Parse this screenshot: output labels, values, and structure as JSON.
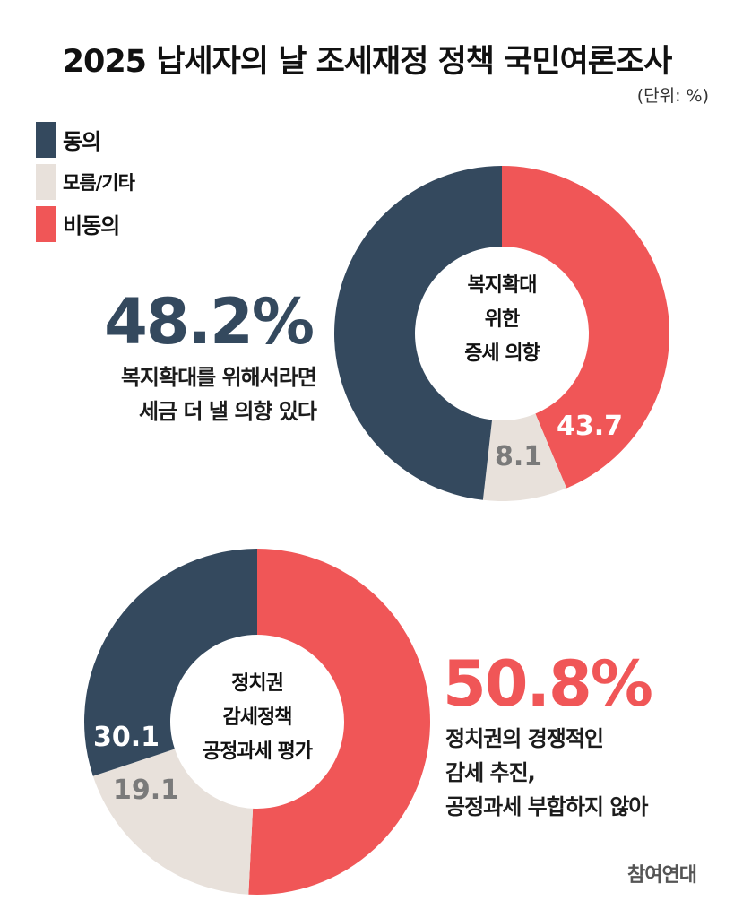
{
  "title": "2025 납세자의 날 조세재정 정책 국민여론조사",
  "unit": "(단위: %)",
  "colors": {
    "agree": "#34495e",
    "unknown": "#e8e1db",
    "disagree": "#f05657",
    "unknown_text": "#7a7a7a",
    "white": "#ffffff"
  },
  "legend": [
    {
      "label": "동의",
      "color": "#34495e"
    },
    {
      "label": "모름/기타",
      "color": "#e8e1db"
    },
    {
      "label": "비동의",
      "color": "#f05657"
    }
  ],
  "charts": [
    {
      "center_label": [
        "복지확대",
        "위한",
        "증세 의향"
      ],
      "headline_pct": "48.2%",
      "headline_desc": [
        "복지확대를 위해서라면",
        "세금 더 낼 의향 있다"
      ],
      "slice_labels": {
        "disagree": "43.7",
        "unknown": "8.1"
      }
    },
    {
      "center_label": [
        "정치권",
        "감세정책",
        "공정과세 평가"
      ],
      "headline_pct": "50.8%",
      "headline_desc": [
        "정치권의 경쟁적인",
        "감세 추진,",
        "공정과세 부합하지 않아"
      ],
      "slice_labels": {
        "agree": "30.1",
        "unknown": "19.1"
      }
    }
  ],
  "source": "참여연대",
  "chart_data": [
    {
      "type": "pie",
      "title": "복지확대 위한 증세 의향",
      "categories": [
        "동의",
        "모름/기타",
        "비동의"
      ],
      "values": [
        48.2,
        8.1,
        43.7
      ],
      "colors": [
        "#34495e",
        "#e8e1db",
        "#f05657"
      ],
      "donut": true,
      "unit": "%",
      "annotation": "48.2% 복지확대를 위해서라면 세금 더 낼 의향 있다",
      "legend_position": "top-left"
    },
    {
      "type": "pie",
      "title": "정치권 감세정책 공정과세 평가",
      "categories": [
        "동의",
        "모름/기타",
        "비동의"
      ],
      "values": [
        30.1,
        19.1,
        50.8
      ],
      "colors": [
        "#34495e",
        "#e8e1db",
        "#f05657"
      ],
      "donut": true,
      "unit": "%",
      "annotation": "50.8% 정치권의 경쟁적인 감세 추진, 공정과세 부합하지 않아",
      "legend_position": "top-left"
    }
  ]
}
